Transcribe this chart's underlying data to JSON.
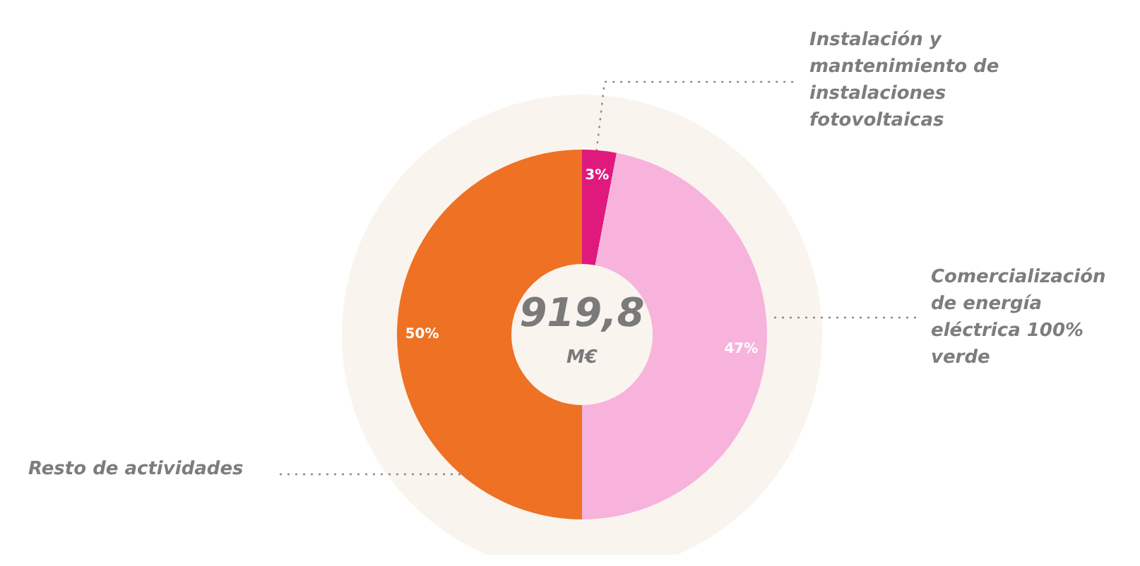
{
  "chart_data": {
    "type": "donut",
    "categories": [
      "Instalación y mantenimiento de instalaciones fotovoltaicas",
      "Comercialización de energía eléctrica 100% verde",
      "Resto de actividades"
    ],
    "values": [
      3,
      47,
      50
    ],
    "colors": [
      "#e0197d",
      "#f7b3dc",
      "#ee7124"
    ],
    "value_labels": [
      "3%",
      "47%",
      "50%"
    ],
    "annotations": [
      "919,8",
      "M€"
    ]
  }
}
